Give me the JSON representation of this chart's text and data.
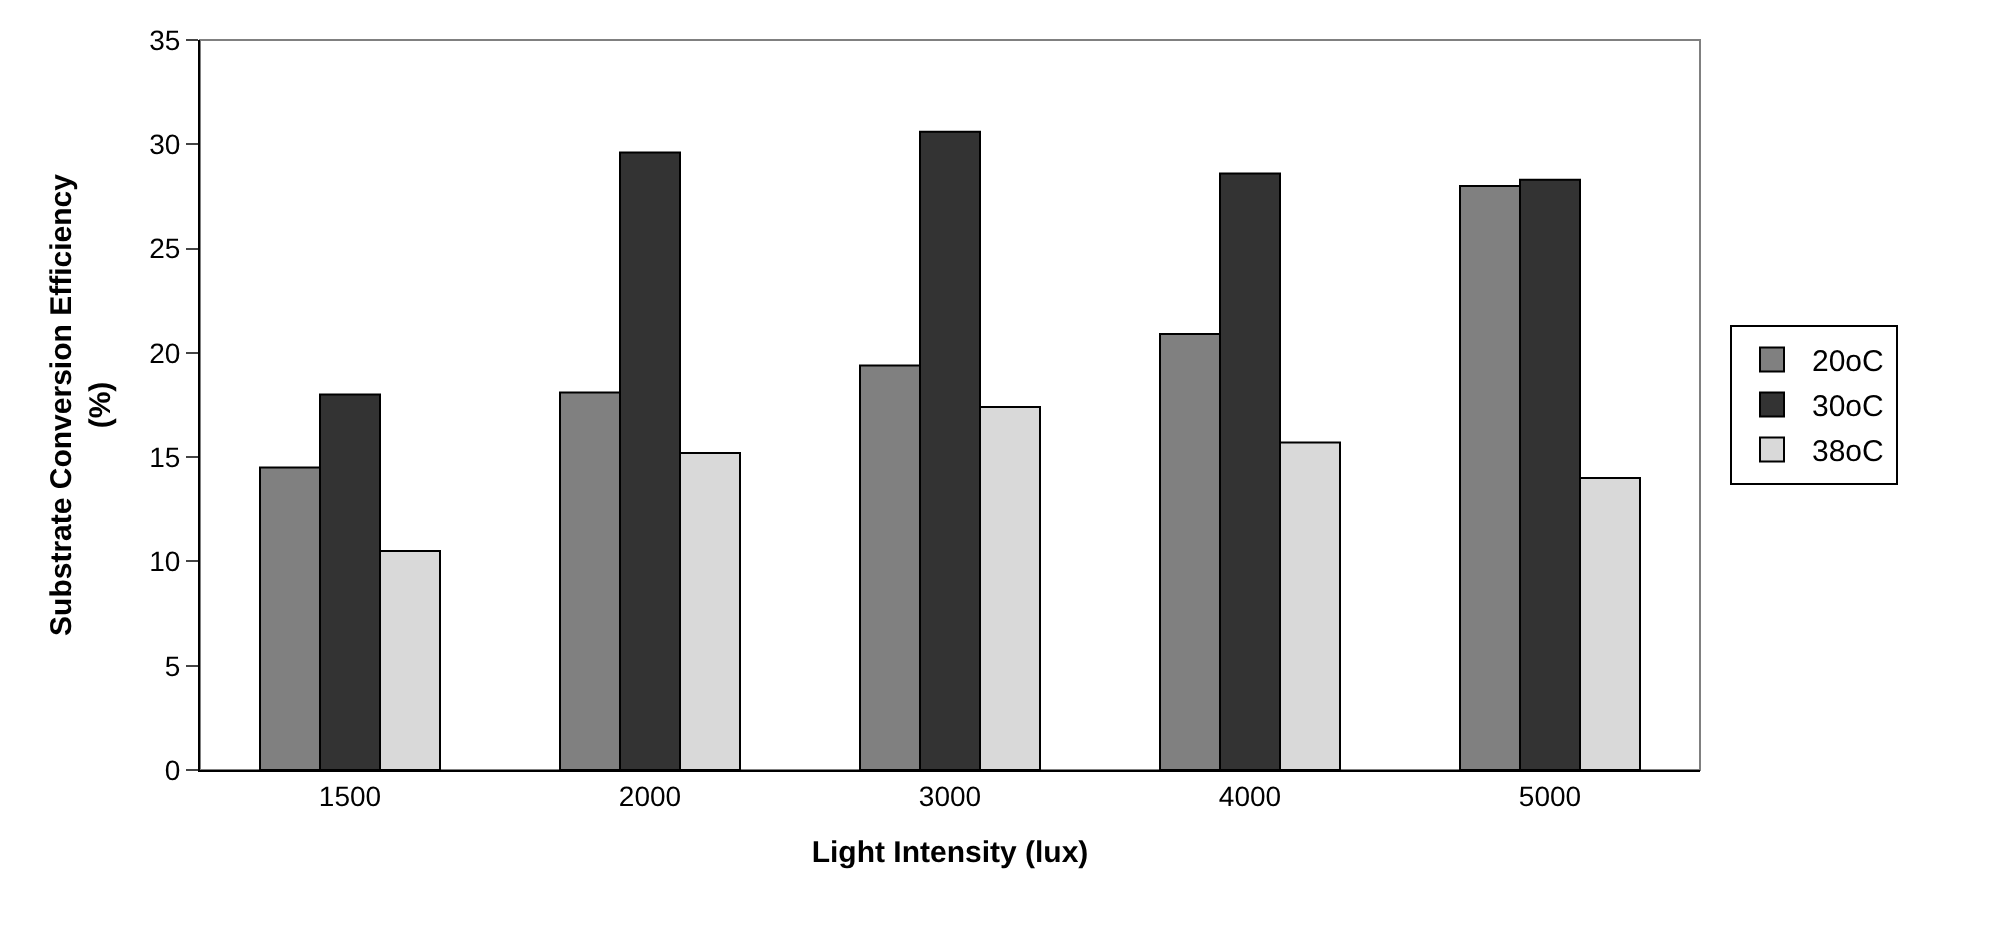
{
  "chart_data": {
    "type": "bar",
    "xlabel": "Light Intensity (lux)",
    "ylabel": "Substrate Conversion Efficiency (%)",
    "categories": [
      "1500",
      "2000",
      "3000",
      "4000",
      "5000"
    ],
    "series": [
      {
        "name": "20oC",
        "color": "#808080",
        "values": [
          14.5,
          18.1,
          19.4,
          20.9,
          28.0
        ]
      },
      {
        "name": "30oC",
        "color": "#333333",
        "values": [
          18.0,
          29.6,
          30.6,
          28.6,
          28.3
        ]
      },
      {
        "name": "38oC",
        "color": "#d9d9d9",
        "values": [
          10.5,
          15.2,
          17.4,
          15.7,
          14.0
        ]
      }
    ],
    "ylim": [
      0,
      35
    ],
    "yticks": [
      0,
      5,
      10,
      15,
      20,
      25,
      30,
      35
    ],
    "grid": false,
    "legend": "right"
  }
}
